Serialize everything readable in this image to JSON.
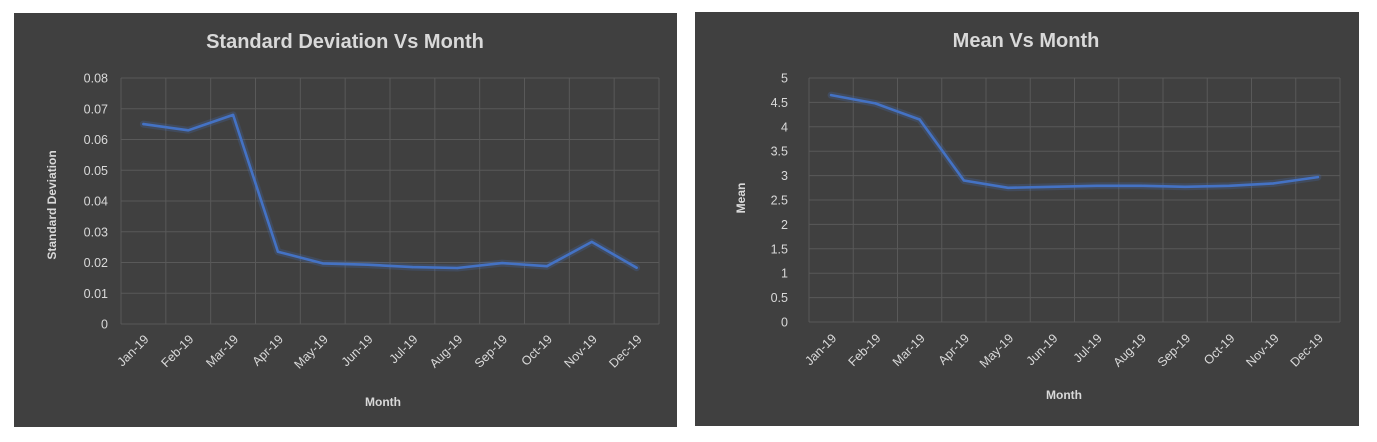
{
  "chart_data": [
    {
      "type": "line",
      "title": "Standard Deviation Vs Month",
      "xlabel": "Month",
      "ylabel": "Standard Deviation",
      "categories": [
        "Jan-19",
        "Feb-19",
        "Mar-19",
        "Apr-19",
        "May-19",
        "Jun-19",
        "Jul-19",
        "Aug-19",
        "Sep-19",
        "Oct-19",
        "Nov-19",
        "Dec-19"
      ],
      "y_ticks": [
        "0",
        "0.01",
        "0.02",
        "0.03",
        "0.04",
        "0.05",
        "0.06",
        "0.07",
        "0.08"
      ],
      "ylim": [
        0,
        0.08
      ],
      "grid": true,
      "series": [
        {
          "name": "Standard Deviation",
          "color": "#4472c4",
          "values": [
            0.065,
            0.063,
            0.068,
            0.0235,
            0.0197,
            0.0193,
            0.0185,
            0.0182,
            0.0198,
            0.0188,
            0.0267,
            0.0183
          ]
        }
      ]
    },
    {
      "type": "line",
      "title": "Mean Vs Month",
      "xlabel": "Month",
      "ylabel": "Mean",
      "categories": [
        "Jan-19",
        "Feb-19",
        "Mar-19",
        "Apr-19",
        "May-19",
        "Jun-19",
        "Jul-19",
        "Aug-19",
        "Sep-19",
        "Oct-19",
        "Nov-19",
        "Dec-19"
      ],
      "y_ticks": [
        "0",
        "0.5",
        "1",
        "1.5",
        "2",
        "2.5",
        "3",
        "3.5",
        "4",
        "4.5",
        "5"
      ],
      "ylim": [
        0,
        5
      ],
      "grid": true,
      "series": [
        {
          "name": "Mean",
          "color": "#4472c4",
          "values": [
            4.65,
            4.48,
            4.15,
            2.9,
            2.75,
            2.77,
            2.79,
            2.79,
            2.77,
            2.79,
            2.84,
            2.97
          ]
        }
      ]
    }
  ]
}
